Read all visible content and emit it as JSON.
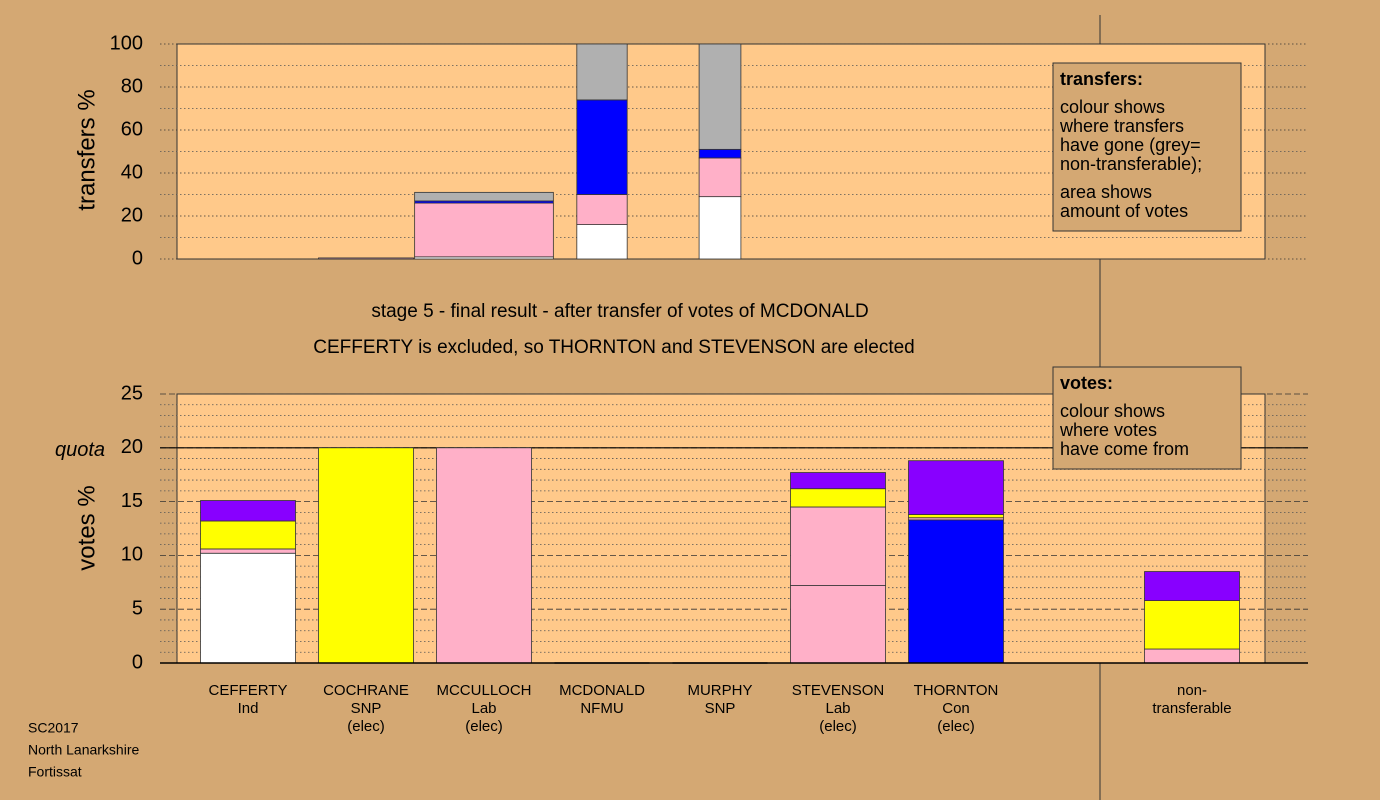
{
  "caption": [
    "stage 5 - final result - after transfer of votes of MCDONALD",
    "CEFFERTY is excluded, so THORNTON and STEVENSON are elected"
  ],
  "footer": [
    "SC2017",
    "North Lanarkshire",
    "Fortissat"
  ],
  "chart_data": [
    {
      "type": "stacked-bar",
      "ylabel": "transfers %",
      "ylim": [
        0,
        100
      ],
      "yticks": [
        0,
        20,
        40,
        60,
        80,
        100
      ],
      "minor_yticks": [
        10,
        30,
        50,
        70,
        90
      ],
      "grid": true,
      "widths": [
        null,
        1.0,
        1.46,
        0.53,
        0.44,
        null,
        null,
        null,
        null
      ],
      "series": [
        {
          "color": "#ffffff",
          "values": [
            null,
            0,
            1,
            16,
            29,
            null,
            null,
            null,
            null
          ]
        },
        {
          "color": "#ffb0c8",
          "values": [
            null,
            0.5,
            25,
            14,
            18,
            null,
            null,
            null,
            null
          ]
        },
        {
          "color": "#0000ff",
          "values": [
            null,
            0,
            1,
            44,
            4,
            null,
            null,
            null,
            null
          ]
        },
        {
          "color": "#b0b0b0",
          "values": [
            null,
            0,
            4,
            26,
            49,
            null,
            null,
            null,
            null
          ]
        }
      ],
      "note": {
        "title": "transfers:",
        "paragraphs": [
          [
            "colour shows",
            "where transfers",
            "have gone (grey=",
            "non-transferable);"
          ],
          [
            "area shows",
            "amount of votes"
          ]
        ]
      }
    },
    {
      "type": "stacked-bar",
      "ylabel": "votes %",
      "ylim": [
        0,
        25
      ],
      "yticks": [
        0,
        5,
        10,
        15,
        20,
        25
      ],
      "minor_yticks": [
        1,
        2,
        3,
        4,
        6,
        7,
        8,
        9,
        11,
        12,
        13,
        14,
        16,
        17,
        18,
        19,
        21,
        22,
        23,
        24
      ],
      "grid": true,
      "quota": {
        "value": 20,
        "label": "quota"
      },
      "categories": [
        [
          "CEFFERTY",
          "Ind"
        ],
        [
          "COCHRANE",
          "SNP",
          "(elec)"
        ],
        [
          "MCCULLOCH",
          "Lab",
          "(elec)"
        ],
        [
          "MCDONALD",
          "NFMU"
        ],
        [
          "MURPHY",
          "SNP"
        ],
        [
          "STEVENSON",
          "Lab",
          "(elec)"
        ],
        [
          "THORNTON",
          "Con",
          "(elec)"
        ],
        null,
        [
          "non-",
          "transferable"
        ]
      ],
      "series": [
        {
          "color": "#ffffff",
          "values": [
            10.2,
            0,
            0,
            0,
            0,
            0,
            0,
            null,
            0
          ]
        },
        {
          "color": "#ffb0c8",
          "values": [
            0,
            0,
            20,
            0,
            0,
            7.2,
            0,
            null,
            0
          ]
        },
        {
          "color": "#0000ff",
          "values": [
            0,
            0,
            0,
            0,
            0,
            0,
            13.3,
            null,
            0
          ]
        },
        {
          "color": "#ffb0c8",
          "values": [
            0.4,
            0,
            0,
            0,
            0,
            7.3,
            0.2,
            null,
            1.3
          ]
        },
        {
          "color": "#ffff00",
          "values": [
            2.6,
            20,
            0,
            0,
            0,
            1.7,
            0.3,
            null,
            4.5
          ]
        },
        {
          "color": "#8800ff",
          "values": [
            1.9,
            0,
            0,
            0,
            0,
            1.5,
            5.0,
            null,
            2.7
          ]
        }
      ],
      "note": {
        "title": "votes:",
        "paragraphs": [
          [
            "colour shows",
            "where votes",
            "have come from"
          ]
        ]
      }
    }
  ]
}
